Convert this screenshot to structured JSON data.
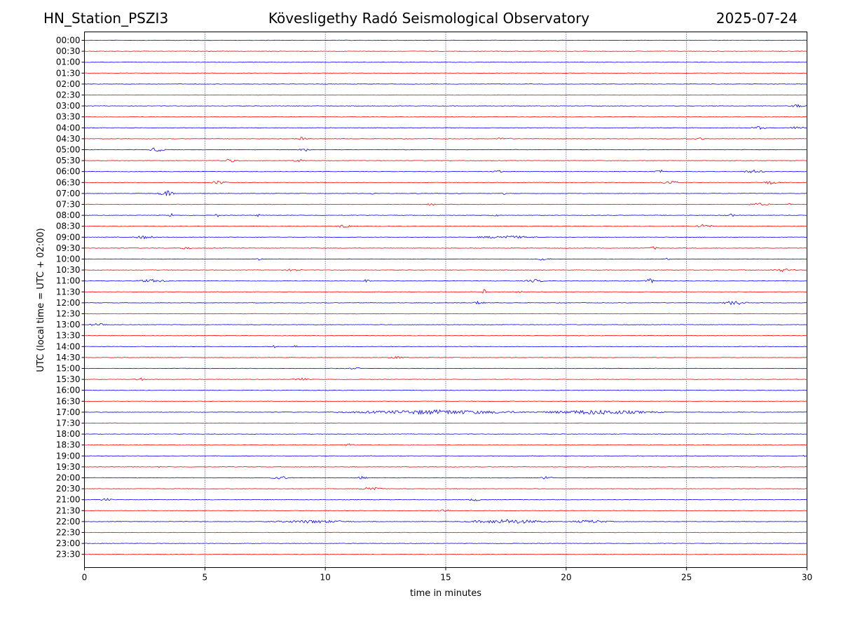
{
  "header": {
    "station": "HN_Station_PSZI3",
    "observatory": "Kövesligethy Radó Seismological Observatory",
    "date": "2025-07-24"
  },
  "chart_data": {
    "type": "line",
    "title": "Kövesligethy Radó Seismological Observatory",
    "xlabel": "time in minutes",
    "ylabel": "UTC (local time = UTC + 02:00)",
    "xlim": [
      0,
      30
    ],
    "xticks": [
      "0",
      "5",
      "10",
      "15",
      "20",
      "25",
      "30"
    ],
    "grid": "vertical dotted at 5-minute intervals",
    "colors": {
      "even_row": "#0000ff",
      "odd_row": "#ff0000",
      "grid": "#000080"
    },
    "rows": [
      {
        "label": "00:00",
        "events": []
      },
      {
        "label": "00:30",
        "events": []
      },
      {
        "label": "01:00",
        "events": []
      },
      {
        "label": "01:30",
        "events": []
      },
      {
        "label": "02:00",
        "events": []
      },
      {
        "label": "02:30",
        "events": []
      },
      {
        "label": "03:00",
        "events": [
          [
            29.6,
            0.4,
            2
          ]
        ]
      },
      {
        "label": "03:30",
        "events": []
      },
      {
        "label": "04:00",
        "events": [
          [
            28.0,
            0.4,
            2
          ],
          [
            29.6,
            0.4,
            2
          ]
        ]
      },
      {
        "label": "04:30",
        "events": [
          [
            9.0,
            0.3,
            2
          ],
          [
            17.4,
            0.4,
            2
          ],
          [
            25.6,
            0.3,
            1.5
          ]
        ]
      },
      {
        "label": "05:00",
        "events": [
          [
            3.0,
            0.4,
            3
          ],
          [
            9.1,
            0.3,
            3
          ]
        ]
      },
      {
        "label": "05:30",
        "events": [
          [
            6.0,
            0.5,
            2
          ],
          [
            8.9,
            0.3,
            2
          ]
        ]
      },
      {
        "label": "06:00",
        "events": [
          [
            17.2,
            0.3,
            1.5
          ],
          [
            23.9,
            0.3,
            2.5
          ],
          [
            27.8,
            0.6,
            2
          ]
        ]
      },
      {
        "label": "06:30",
        "events": [
          [
            5.6,
            0.4,
            3
          ],
          [
            24.3,
            0.4,
            3
          ],
          [
            28.5,
            0.4,
            2.5
          ]
        ]
      },
      {
        "label": "07:00",
        "events": [
          [
            3.4,
            0.4,
            4
          ],
          [
            12.0,
            0.1,
            3
          ],
          [
            13.9,
            0.1,
            2
          ],
          [
            15.5,
            0.08,
            6
          ],
          [
            17.4,
            0.1,
            2
          ]
        ]
      },
      {
        "label": "07:30",
        "events": [
          [
            14.4,
            0.2,
            2
          ],
          [
            29.3,
            0.1,
            2
          ],
          [
            28.0,
            0.6,
            1.5
          ]
        ]
      },
      {
        "label": "08:00",
        "events": [
          [
            3.6,
            0.1,
            3
          ],
          [
            5.5,
            0.1,
            3
          ],
          [
            7.2,
            0.1,
            2
          ],
          [
            17.0,
            0.2,
            3
          ],
          [
            26.8,
            0.3,
            2
          ]
        ]
      },
      {
        "label": "08:30",
        "events": [
          [
            10.8,
            0.4,
            2.5
          ],
          [
            25.7,
            0.4,
            3.5
          ]
        ]
      },
      {
        "label": "09:00",
        "events": [
          [
            2.5,
            0.6,
            2
          ],
          [
            17.5,
            1.5,
            2
          ]
        ]
      },
      {
        "label": "09:30",
        "events": [
          [
            4.2,
            0.3,
            1.5
          ],
          [
            23.6,
            0.3,
            2
          ]
        ]
      },
      {
        "label": "10:00",
        "events": [
          [
            7.3,
            0.2,
            2
          ],
          [
            19.1,
            0.3,
            3
          ],
          [
            24.2,
            0.1,
            2
          ]
        ]
      },
      {
        "label": "10:30",
        "events": [
          [
            8.7,
            0.4,
            2
          ],
          [
            29.0,
            0.6,
            2
          ]
        ]
      },
      {
        "label": "11:00",
        "events": [
          [
            2.8,
            0.8,
            2
          ],
          [
            11.7,
            0.2,
            2
          ],
          [
            18.7,
            0.5,
            2
          ],
          [
            23.5,
            0.3,
            3
          ]
        ]
      },
      {
        "label": "11:30",
        "events": [
          [
            16.6,
            0.1,
            4
          ],
          [
            18.1,
            0.1,
            2
          ]
        ]
      },
      {
        "label": "12:00",
        "events": [
          [
            16.4,
            0.3,
            3
          ],
          [
            27.0,
            0.6,
            3
          ]
        ]
      },
      {
        "label": "12:30",
        "events": []
      },
      {
        "label": "13:00",
        "events": [
          [
            0.6,
            0.5,
            2
          ]
        ]
      },
      {
        "label": "13:30",
        "events": []
      },
      {
        "label": "14:00",
        "events": [
          [
            7.9,
            0.1,
            2
          ],
          [
            8.8,
            0.2,
            2
          ]
        ]
      },
      {
        "label": "14:30",
        "events": [
          [
            13.0,
            0.5,
            1.5
          ]
        ]
      },
      {
        "label": "15:00",
        "events": [
          [
            11.2,
            0.3,
            1.5
          ]
        ]
      },
      {
        "label": "15:30",
        "events": [
          [
            2.3,
            0.3,
            2
          ],
          [
            9.0,
            0.4,
            2
          ]
        ]
      },
      {
        "label": "16:00",
        "events": []
      },
      {
        "label": "16:30",
        "events": []
      },
      {
        "label": "17:00",
        "events": [
          [
            14.6,
            4.5,
            3
          ],
          [
            21.3,
            3.0,
            3
          ]
        ]
      },
      {
        "label": "17:30",
        "events": []
      },
      {
        "label": "18:00",
        "events": []
      },
      {
        "label": "18:30",
        "events": [
          [
            11.0,
            0.3,
            1.5
          ]
        ]
      },
      {
        "label": "19:00",
        "events": [
          [
            29.9,
            0.1,
            2
          ]
        ]
      },
      {
        "label": "19:30",
        "events": [
          [
            3.1,
            0.1,
            1.5
          ]
        ]
      },
      {
        "label": "20:00",
        "events": [
          [
            8.2,
            0.5,
            2
          ],
          [
            11.5,
            0.3,
            2
          ],
          [
            19.2,
            0.3,
            3
          ]
        ]
      },
      {
        "label": "20:30",
        "events": [
          [
            11.9,
            0.5,
            3.5
          ]
        ]
      },
      {
        "label": "21:00",
        "events": [
          [
            0.9,
            0.3,
            2
          ],
          [
            16.2,
            0.3,
            2
          ]
        ]
      },
      {
        "label": "21:30",
        "events": [
          [
            14.9,
            0.4,
            2
          ]
        ]
      },
      {
        "label": "22:00",
        "events": [
          [
            9.5,
            2.0,
            2
          ],
          [
            17.6,
            2.0,
            3
          ],
          [
            21.0,
            1.0,
            2
          ]
        ]
      },
      {
        "label": "22:30",
        "events": []
      },
      {
        "label": "23:00",
        "events": []
      },
      {
        "label": "23:30",
        "events": []
      }
    ]
  }
}
